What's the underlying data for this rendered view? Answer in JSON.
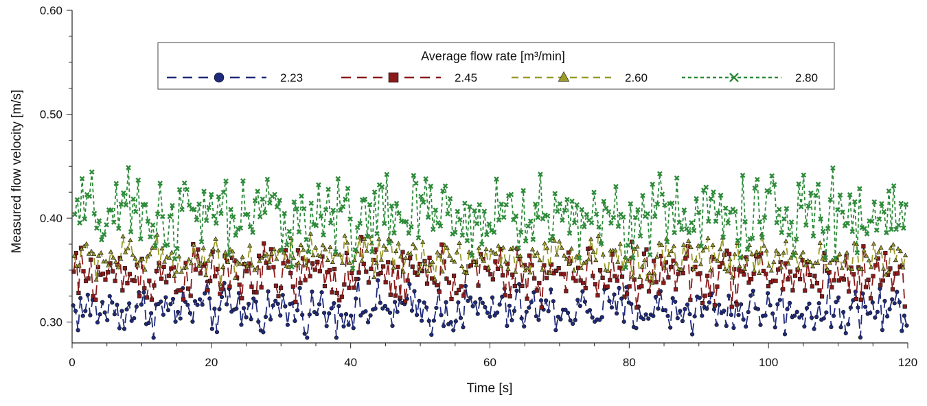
{
  "chart_data": {
    "type": "line",
    "xlabel": "Time [s]",
    "ylabel": "Measured flow velocity [m/s]",
    "xlim": [
      0,
      120
    ],
    "ylim": [
      0.28,
      0.6
    ],
    "xticks": [
      0,
      20,
      40,
      60,
      80,
      100,
      120
    ],
    "xtick_labels": [
      "0",
      "20",
      "40",
      "60",
      "80",
      "100",
      "120"
    ],
    "yticks": [
      0.3,
      0.4,
      0.5,
      0.6
    ],
    "ytick_labels": [
      "0.30",
      "0.40",
      "0.50",
      "0.60"
    ],
    "grid": false,
    "legend": {
      "title": "Average flow rate [m³/min]",
      "placement": "top-center",
      "entries": [
        "2.23",
        "2.45",
        "2.60",
        "2.80"
      ]
    },
    "series": [
      {
        "name": "2.23",
        "color": "#1f2a7a",
        "marker": "circle",
        "line": "long-dash",
        "mean": 0.312,
        "amplitude": 0.012,
        "x_step": 0.35
      },
      {
        "name": "2.45",
        "color": "#8b1a1a",
        "marker": "square",
        "line": "long-dash",
        "mean": 0.345,
        "amplitude": 0.014,
        "x_step": 0.35
      },
      {
        "name": "2.60",
        "color": "#9a9a2a",
        "marker": "triangle",
        "line": "dash",
        "mean": 0.362,
        "amplitude": 0.01,
        "x_step": 0.35
      },
      {
        "name": "2.80",
        "color": "#2e8b3a",
        "marker": "x",
        "line": "dot",
        "mean": 0.402,
        "amplitude": 0.02,
        "x_step": 0.35
      }
    ]
  }
}
